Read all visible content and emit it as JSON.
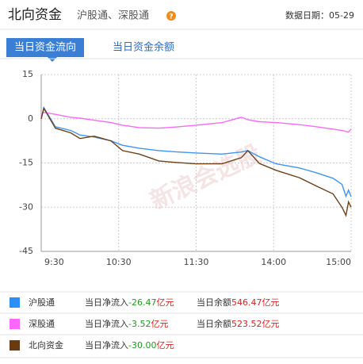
{
  "header": {
    "title": "北向资金",
    "subtitle": "沪股通、深股通",
    "help_icon": "?",
    "date": "数据日期：05-29"
  },
  "tabs": [
    "当日资金流向",
    "当日资金余额"
  ],
  "chart_data": {
    "type": "line",
    "watermark": "新浪会选股",
    "x": [
      0,
      2,
      11,
      23,
      30,
      41,
      54,
      63,
      76,
      91,
      104,
      120,
      140,
      155,
      160,
      169,
      182,
      200,
      213,
      226,
      233,
      236,
      238,
      240
    ],
    "xlim": [
      0,
      240
    ],
    "xticks": [
      {
        "value": 0,
        "label": "9:30"
      },
      {
        "value": 60,
        "label": "10:30"
      },
      {
        "value": 120,
        "label": "11:30"
      },
      {
        "value": 180,
        "label": "14:00"
      },
      {
        "value": 240,
        "label": "15:00"
      }
    ],
    "ylim": [
      -45,
      15
    ],
    "yticks": [
      15,
      0,
      -15,
      -30,
      -45
    ],
    "grid": true,
    "series": [
      {
        "name": "沪股通",
        "color": "#3d95f5",
        "values": [
          0,
          3.8,
          -2.7,
          -4,
          -5.5,
          -6.2,
          -7.5,
          -9,
          -10,
          -10.8,
          -11.2,
          -11.6,
          -12,
          -11.3,
          -10.8,
          -12.9,
          -15.3,
          -16.7,
          -18.3,
          -20.2,
          -22.3,
          -26.3,
          -24.2,
          -26.47
        ]
      },
      {
        "name": "深股通",
        "color": "#f76cf7",
        "values": [
          1.3,
          2.2,
          1.5,
          0.5,
          0.2,
          -0.5,
          -1.3,
          -2.2,
          -3,
          -3.2,
          -2.8,
          -2.2,
          -1.3,
          0.5,
          -0.3,
          -1,
          -1.3,
          -2,
          -2.7,
          -3.5,
          -4,
          -4.3,
          -4.5,
          -3.52
        ]
      },
      {
        "name": "北向资金",
        "color": "#6e4016",
        "values": [
          0,
          3.5,
          -3.2,
          -4.8,
          -6.7,
          -5.9,
          -7.5,
          -10.8,
          -12,
          -14.3,
          -14.8,
          -15.3,
          -15.3,
          -13.2,
          -10.8,
          -15.2,
          -17.5,
          -20,
          -22.8,
          -25.5,
          -30.1,
          -32.8,
          -28.2,
          -30
        ]
      }
    ]
  },
  "legend_rows": [
    {
      "name": "沪股通",
      "color": "#2a8ff7",
      "net_label": "当日净流入",
      "net": "-26.47",
      "net_unit": "亿元",
      "balance_label": "当日余额",
      "balance": "546.47",
      "balance_unit": "亿元"
    },
    {
      "name": "深股通",
      "color": "#ff66ff",
      "net_label": "当日净流入",
      "net": "-3.52",
      "net_unit": "亿元",
      "balance_label": "当日余额",
      "balance": "523.52",
      "balance_unit": "亿元"
    },
    {
      "name": "北向资金",
      "color": "#6b3a10",
      "net_label": "当日净流入",
      "net": "-30.00",
      "net_unit": "亿元"
    }
  ]
}
